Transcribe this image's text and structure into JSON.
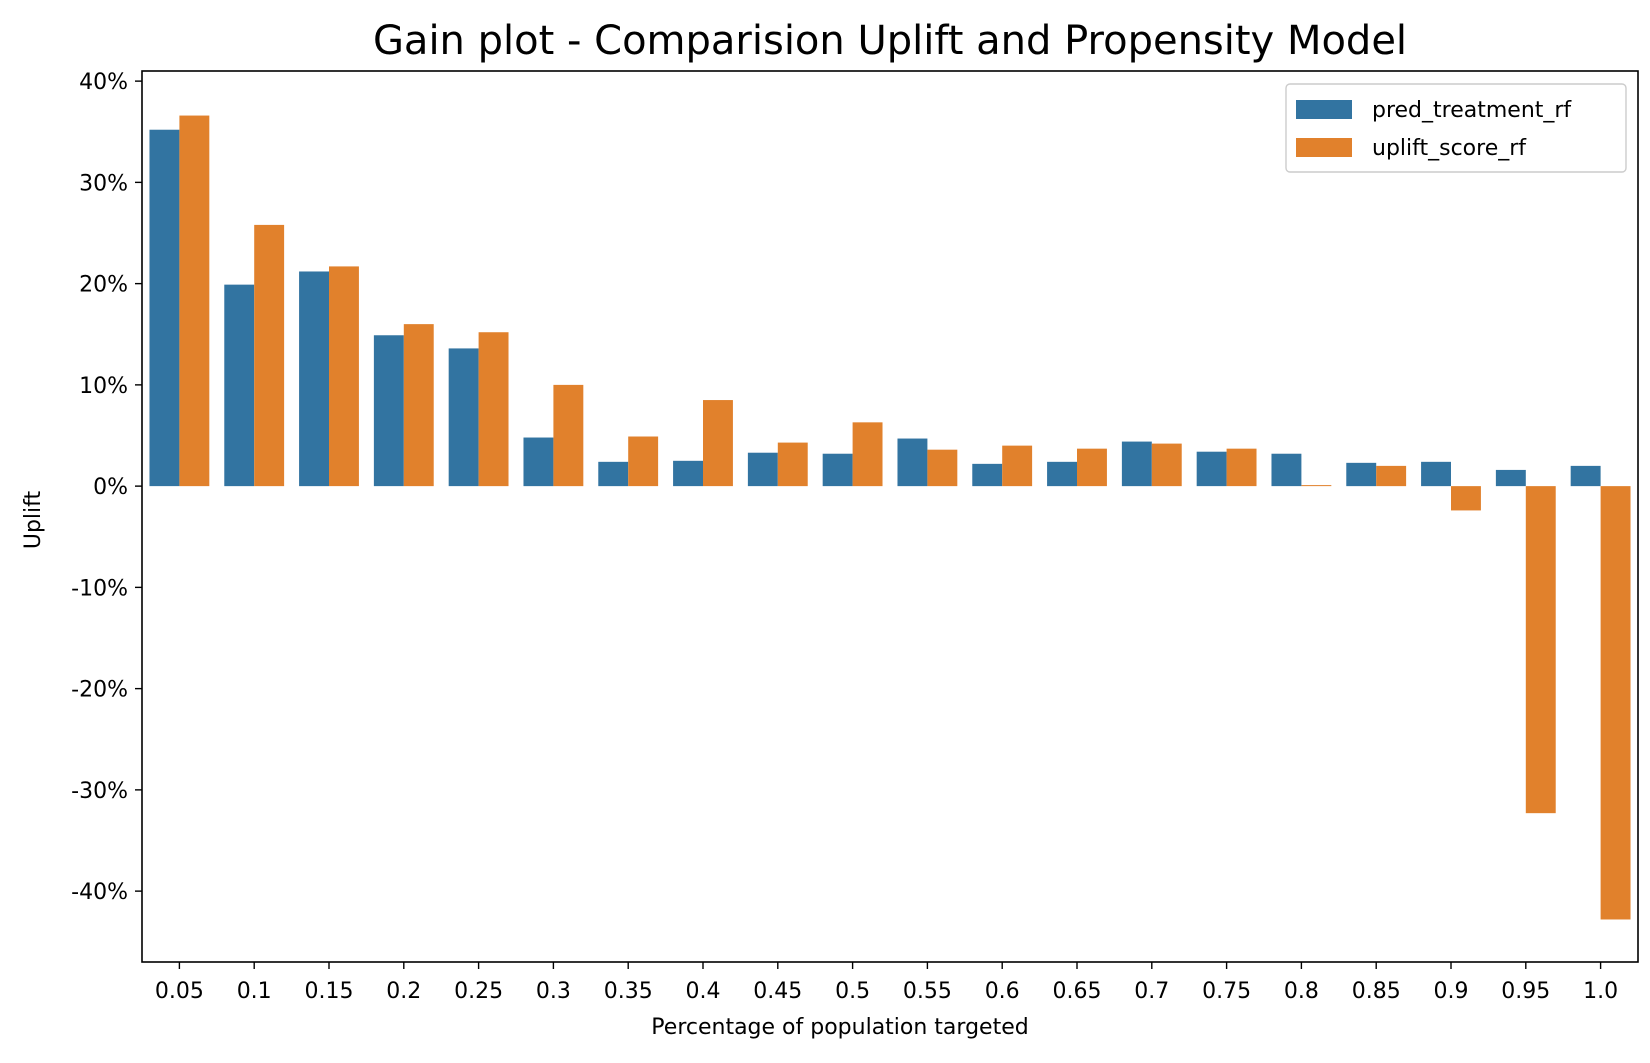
{
  "chart_data": {
    "type": "bar",
    "title": "Gain plot - Comparision Uplift and Propensity Model",
    "xlabel": "Percentage of population targeted",
    "ylabel": "Uplift",
    "categories": [
      "0.05",
      "0.1",
      "0.15",
      "0.2",
      "0.25",
      "0.3",
      "0.35",
      "0.4",
      "0.45",
      "0.5",
      "0.55",
      "0.6",
      "0.65",
      "0.7",
      "0.75",
      "0.8",
      "0.85",
      "0.9",
      "0.95",
      "1.0"
    ],
    "series": [
      {
        "name": "pred_treatment_rf",
        "color": "#3274a1",
        "values": [
          35.2,
          19.9,
          21.2,
          14.9,
          13.6,
          4.8,
          2.4,
          2.5,
          3.3,
          3.2,
          4.7,
          2.2,
          2.4,
          4.4,
          3.4,
          3.2,
          2.3,
          2.4,
          1.6,
          2.0
        ]
      },
      {
        "name": "uplift_score_rf",
        "color": "#e1812c",
        "values": [
          36.6,
          25.8,
          21.7,
          16.0,
          15.2,
          10.0,
          4.9,
          8.5,
          4.3,
          6.3,
          3.6,
          4.0,
          3.7,
          4.2,
          3.7,
          0.1,
          2.0,
          -2.4,
          -32.3,
          -42.8
        ]
      }
    ],
    "ylim": [
      -47,
      41
    ],
    "y_ticks": [
      40,
      30,
      20,
      10,
      0,
      -10,
      -20,
      -30,
      -40
    ],
    "y_tick_labels": [
      "40%",
      "30%",
      "20%",
      "10%",
      "0%",
      "-10%",
      "-20%",
      "-30%",
      "-40%"
    ],
    "grid": false,
    "legend_position": "top-right"
  }
}
